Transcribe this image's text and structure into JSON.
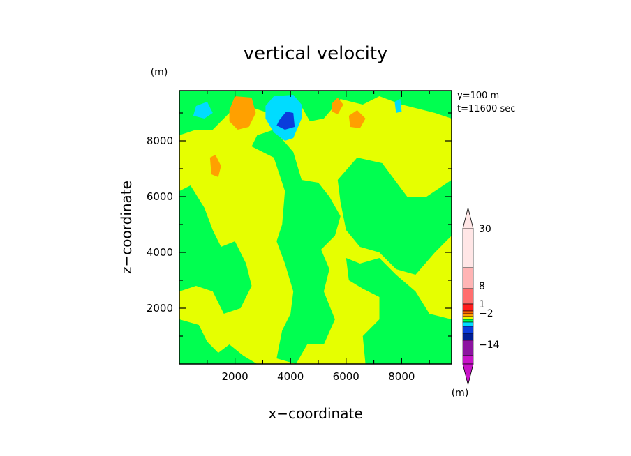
{
  "chart_data": {
    "type": "heatmap",
    "title": "vertical velocity",
    "xlabel": "x−coordinate",
    "ylabel": "z−coordinate",
    "xunit": "(m)",
    "yunit": "(m)",
    "xlim": [
      0,
      9800
    ],
    "ylim": [
      0,
      9800
    ],
    "xticks": [
      "2000",
      "4000",
      "6000",
      "8000"
    ],
    "yticks": [
      "2000",
      "4000",
      "6000",
      "8000"
    ],
    "xtick_values": [
      2000,
      4000,
      6000,
      8000
    ],
    "ytick_values": [
      2000,
      4000,
      6000,
      8000
    ],
    "annotation": [
      "y=100  m",
      "t=11600 sec"
    ],
    "colorbar": {
      "unit": "(m)",
      "labels": [
        "30",
        "8",
        "1",
        "−2",
        "−14"
      ],
      "colors": [
        "#c814c8",
        "#8c14a0",
        "#001e96",
        "#0a3cdc",
        "#00dcff",
        "#00ff50",
        "#e6ff00",
        "#ffa000",
        "#ff6400",
        "#ff1e1e",
        "#ff6e6e",
        "#ffb4b4",
        "#ffe6e6"
      ]
    },
    "field": {
      "background": "#e6ff00",
      "regions": [
        {
          "level": "green",
          "color": "#00ff50",
          "points": [
            [
              0,
              6200
            ],
            [
              400,
              6400
            ],
            [
              900,
              5600
            ],
            [
              1200,
              4800
            ],
            [
              1500,
              4200
            ],
            [
              2000,
              4400
            ],
            [
              2400,
              3600
            ],
            [
              2600,
              2800
            ],
            [
              2200,
              2000
            ],
            [
              1600,
              1800
            ],
            [
              1200,
              2600
            ],
            [
              600,
              2800
            ],
            [
              0,
              2600
            ]
          ]
        },
        {
          "level": "green",
          "color": "#00ff50",
          "points": [
            [
              0,
              1600
            ],
            [
              700,
              1400
            ],
            [
              1000,
              800
            ],
            [
              1400,
              400
            ],
            [
              1800,
              700
            ],
            [
              2300,
              300
            ],
            [
              2800,
              0
            ],
            [
              0,
              0
            ]
          ]
        },
        {
          "level": "green",
          "color": "#00ff50",
          "points": [
            [
              2600,
              7800
            ],
            [
              3400,
              7400
            ],
            [
              3800,
              6200
            ],
            [
              3700,
              5000
            ],
            [
              3500,
              4400
            ],
            [
              3800,
              3600
            ],
            [
              4100,
              2600
            ],
            [
              4000,
              1800
            ],
            [
              3700,
              1200
            ],
            [
              3500,
              200
            ],
            [
              4200,
              0
            ],
            [
              4600,
              700
            ],
            [
              5200,
              700
            ],
            [
              5600,
              1600
            ],
            [
              5200,
              2600
            ],
            [
              5400,
              3400
            ],
            [
              5100,
              4100
            ],
            [
              5600,
              4600
            ],
            [
              5800,
              5300
            ],
            [
              5400,
              6000
            ],
            [
              5000,
              6500
            ],
            [
              4400,
              6600
            ],
            [
              4100,
              7600
            ],
            [
              3400,
              8400
            ],
            [
              2800,
              8200
            ]
          ]
        },
        {
          "level": "green",
          "color": "#00ff50",
          "points": [
            [
              6000,
              3800
            ],
            [
              6500,
              3600
            ],
            [
              7200,
              3800
            ],
            [
              7800,
              3200
            ],
            [
              8500,
              2600
            ],
            [
              9000,
              1800
            ],
            [
              9800,
              1600
            ],
            [
              9800,
              0
            ],
            [
              6700,
              0
            ],
            [
              6600,
              1000
            ],
            [
              7200,
              1600
            ],
            [
              7200,
              2400
            ],
            [
              6600,
              2700
            ],
            [
              6100,
              3000
            ]
          ]
        },
        {
          "level": "green",
          "color": "#00ff50",
          "points": [
            [
              5700,
              6600
            ],
            [
              6400,
              7400
            ],
            [
              7300,
              7200
            ],
            [
              7600,
              6800
            ],
            [
              8200,
              6000
            ],
            [
              8900,
              6000
            ],
            [
              9800,
              6600
            ],
            [
              9800,
              4600
            ],
            [
              9200,
              4000
            ],
            [
              8500,
              3200
            ],
            [
              7800,
              3400
            ],
            [
              7200,
              4000
            ],
            [
              6500,
              4200
            ],
            [
              6000,
              4800
            ],
            [
              5800,
              5800
            ]
          ]
        },
        {
          "level": "green",
          "color": "#00ff50",
          "points": [
            [
              0,
              9800
            ],
            [
              9800,
              9800
            ],
            [
              9800,
              8800
            ],
            [
              9200,
              9000
            ],
            [
              8000,
              9300
            ],
            [
              7200,
              9600
            ],
            [
              6600,
              9300
            ],
            [
              5800,
              9500
            ],
            [
              5200,
              8800
            ],
            [
              4700,
              8700
            ],
            [
              4300,
              9400
            ],
            [
              3700,
              9300
            ],
            [
              3200,
              9000
            ],
            [
              2600,
              9200
            ],
            [
              1800,
              9000
            ],
            [
              1200,
              8400
            ],
            [
              600,
              8400
            ],
            [
              0,
              8200
            ]
          ]
        },
        {
          "level": "cyan",
          "color": "#00dcff",
          "points": [
            [
              3100,
              9250
            ],
            [
              3400,
              9600
            ],
            [
              4100,
              9650
            ],
            [
              4400,
              9300
            ],
            [
              4400,
              8800
            ],
            [
              4100,
              8100
            ],
            [
              3800,
              8000
            ],
            [
              3400,
              8300
            ],
            [
              3100,
              8800
            ]
          ]
        },
        {
          "level": "blue",
          "color": "#0a3cdc",
          "points": [
            [
              3600,
              8750
            ],
            [
              3850,
              9050
            ],
            [
              4100,
              9000
            ],
            [
              4150,
              8500
            ],
            [
              3800,
              8400
            ],
            [
              3500,
              8550
            ]
          ]
        },
        {
          "level": "cyan",
          "color": "#00dcff",
          "points": [
            [
              600,
              9250
            ],
            [
              1000,
              9400
            ],
            [
              1200,
              9000
            ],
            [
              900,
              8800
            ],
            [
              500,
              8900
            ]
          ]
        },
        {
          "level": "cyan",
          "color": "#00dcff",
          "points": [
            [
              7750,
              9400
            ],
            [
              7950,
              9500
            ],
            [
              8000,
              9050
            ],
            [
              7800,
              9000
            ]
          ]
        },
        {
          "level": "orange",
          "color": "#ffa000",
          "points": [
            [
              1800,
              9100
            ],
            [
              2000,
              9600
            ],
            [
              2600,
              9550
            ],
            [
              2750,
              9000
            ],
            [
              2500,
              8500
            ],
            [
              2100,
              8400
            ],
            [
              1800,
              8700
            ]
          ]
        },
        {
          "level": "orange",
          "color": "#ffa000",
          "points": [
            [
              5500,
              9350
            ],
            [
              5700,
              9550
            ],
            [
              5900,
              9300
            ],
            [
              5700,
              8950
            ],
            [
              5500,
              9050
            ]
          ]
        },
        {
          "level": "orange",
          "color": "#ffa000",
          "points": [
            [
              6100,
              8900
            ],
            [
              6400,
              9100
            ],
            [
              6700,
              8800
            ],
            [
              6500,
              8450
            ],
            [
              6150,
              8500
            ]
          ]
        },
        {
          "level": "orange",
          "color": "#ffa000",
          "points": [
            [
              1100,
              7400
            ],
            [
              1300,
              7500
            ],
            [
              1500,
              7100
            ],
            [
              1400,
              6700
            ],
            [
              1150,
              6800
            ]
          ]
        }
      ]
    }
  }
}
